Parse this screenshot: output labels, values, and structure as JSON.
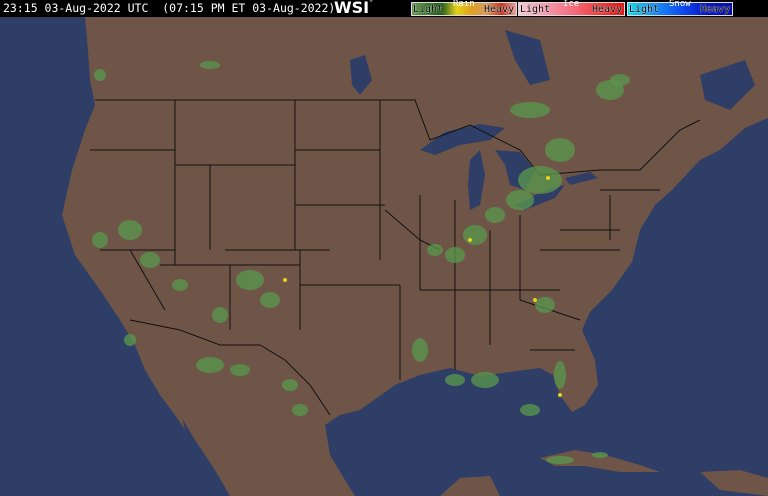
{
  "header": {
    "timestamp": "23:15 03-Aug-2022 UTC  (07:15 PM ET 03-Aug-2022)",
    "logo": "WSI",
    "logo_mark": "°"
  },
  "legend": {
    "rain": {
      "title": "Rain",
      "light": "Light",
      "heavy": "Heavy",
      "colors": [
        "#6a9a5a",
        "#3d7a2c",
        "#235c1c",
        "#e3d21a",
        "#e0a020",
        "#d89a5e",
        "#c8361e",
        "#e8a0a0"
      ]
    },
    "ice": {
      "title": "Ice",
      "light": "Light",
      "heavy": "Heavy",
      "colors": [
        "#f4c8d0",
        "#f59ab0",
        "#f27080",
        "#f04040",
        "#e01818"
      ]
    },
    "snow": {
      "title": "Snow",
      "light": "Light",
      "heavy": "Heavy",
      "colors": [
        "#18d8e8",
        "#1890f0",
        "#1050f0",
        "#0818c8",
        "#0810a0"
      ]
    }
  },
  "map": {
    "land_color": "#6e5548",
    "water_color": "#2e3e66",
    "border_color": "#111111"
  }
}
